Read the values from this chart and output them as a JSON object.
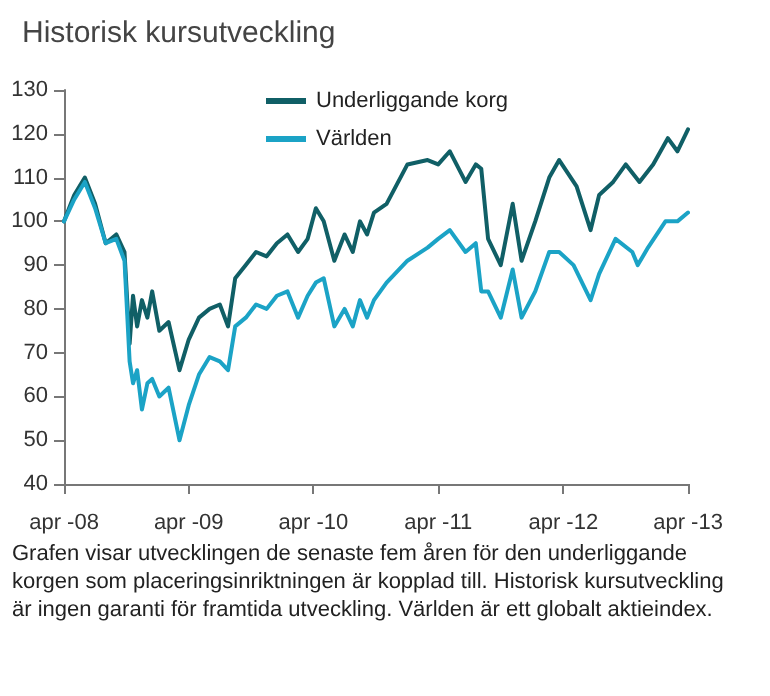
{
  "chart_data": {
    "type": "line",
    "title": "Historisk kursutveckling",
    "annotations": [
      "Grafen visar utvecklingen de senaste fem åren för den underliggande korgen som placeringsinriktningen är kopplad till. Historisk kursutveckling är ingen garanti för framtida utveckling. Världen är ett globalt aktieindex."
    ],
    "xlim": [
      "2008-04-01",
      "2013-04-01"
    ],
    "xticks": [
      {
        "value": "2008-04-01",
        "label": "apr -08"
      },
      {
        "value": "2009-04-01",
        "label": "apr -09"
      },
      {
        "value": "2010-04-01",
        "label": "apr -10"
      },
      {
        "value": "2011-04-01",
        "label": "apr -11"
      },
      {
        "value": "2012-04-01",
        "label": "apr -12"
      },
      {
        "value": "2013-04-01",
        "label": "apr -13"
      }
    ],
    "ylim": [
      40,
      130
    ],
    "yticks": [
      40,
      50,
      60,
      70,
      80,
      90,
      100,
      110,
      120,
      130
    ],
    "grid": false,
    "legend": "top",
    "marker": "none",
    "line_style": "solid",
    "series": [
      {
        "name": "Underliggande korg",
        "color": "#105f66",
        "x": [
          "2008-04-01",
          "2008-05-01",
          "2008-06-01",
          "2008-07-01",
          "2008-08-01",
          "2008-09-01",
          "2008-09-25",
          "2008-10-10",
          "2008-10-20",
          "2008-11-01",
          "2008-11-15",
          "2008-12-01",
          "2008-12-15",
          "2009-01-05",
          "2009-02-01",
          "2009-03-05",
          "2009-04-01",
          "2009-05-01",
          "2009-06-01",
          "2009-07-01",
          "2009-07-25",
          "2009-08-15",
          "2009-09-15",
          "2009-10-15",
          "2009-11-15",
          "2009-12-15",
          "2010-01-15",
          "2010-02-15",
          "2010-03-15",
          "2010-04-08",
          "2010-05-01",
          "2010-06-01",
          "2010-07-01",
          "2010-07-25",
          "2010-08-15",
          "2010-09-05",
          "2010-09-25",
          "2010-11-01",
          "2011-01-01",
          "2011-03-01",
          "2011-04-01",
          "2011-05-05",
          "2011-06-20",
          "2011-07-20",
          "2011-08-05",
          "2011-08-25",
          "2011-10-01",
          "2011-11-05",
          "2011-12-01",
          "2012-01-10",
          "2012-02-20",
          "2012-03-20",
          "2012-05-10",
          "2012-06-20",
          "2012-07-15",
          "2012-08-25",
          "2012-10-01",
          "2012-11-10",
          "2012-12-20",
          "2013-02-01",
          "2013-03-01",
          "2013-04-01"
        ],
        "values": [
          100,
          106,
          110,
          104,
          95,
          97,
          93,
          72,
          83,
          76,
          82,
          78,
          84,
          75,
          77,
          66,
          73,
          78,
          80,
          81,
          76,
          87,
          90,
          93,
          92,
          95,
          97,
          93,
          96,
          103,
          100,
          91,
          97,
          93,
          100,
          97,
          102,
          104,
          113,
          114,
          113,
          116,
          109,
          113,
          112,
          96,
          90,
          104,
          91,
          100,
          110,
          114,
          108,
          98,
          106,
          109,
          113,
          109,
          113,
          119,
          116,
          121
        ]
      },
      {
        "name": "Världen",
        "color": "#1ba3c6",
        "x": [
          "2008-04-01",
          "2008-05-01",
          "2008-06-01",
          "2008-07-01",
          "2008-08-01",
          "2008-09-01",
          "2008-09-25",
          "2008-10-10",
          "2008-10-20",
          "2008-11-01",
          "2008-11-15",
          "2008-12-01",
          "2008-12-15",
          "2009-01-05",
          "2009-02-01",
          "2009-03-05",
          "2009-04-01",
          "2009-05-01",
          "2009-06-01",
          "2009-07-01",
          "2009-07-25",
          "2009-08-15",
          "2009-09-15",
          "2009-10-15",
          "2009-11-15",
          "2009-12-15",
          "2010-01-15",
          "2010-02-15",
          "2010-03-15",
          "2010-04-08",
          "2010-05-01",
          "2010-06-01",
          "2010-07-01",
          "2010-07-25",
          "2010-08-15",
          "2010-09-05",
          "2010-09-25",
          "2010-11-01",
          "2011-01-01",
          "2011-03-01",
          "2011-04-01",
          "2011-05-05",
          "2011-06-20",
          "2011-07-20",
          "2011-08-05",
          "2011-08-25",
          "2011-10-01",
          "2011-11-05",
          "2011-12-01",
          "2012-01-10",
          "2012-02-20",
          "2012-03-20",
          "2012-05-01",
          "2012-06-20",
          "2012-07-15",
          "2012-09-01",
          "2012-10-20",
          "2012-11-05",
          "2012-12-05",
          "2013-01-25",
          "2013-03-01",
          "2013-04-01"
        ],
        "values": [
          100,
          105,
          109,
          103,
          95,
          96,
          91,
          68,
          63,
          66,
          57,
          63,
          64,
          60,
          62,
          50,
          58,
          65,
          69,
          68,
          66,
          76,
          78,
          81,
          80,
          83,
          84,
          78,
          83,
          86,
          87,
          76,
          80,
          76,
          82,
          78,
          82,
          86,
          91,
          94,
          96,
          98,
          93,
          95,
          84,
          84,
          78,
          89,
          78,
          84,
          93,
          93,
          90,
          82,
          88,
          96,
          93,
          90,
          94,
          100,
          100,
          102
        ]
      }
    ]
  }
}
